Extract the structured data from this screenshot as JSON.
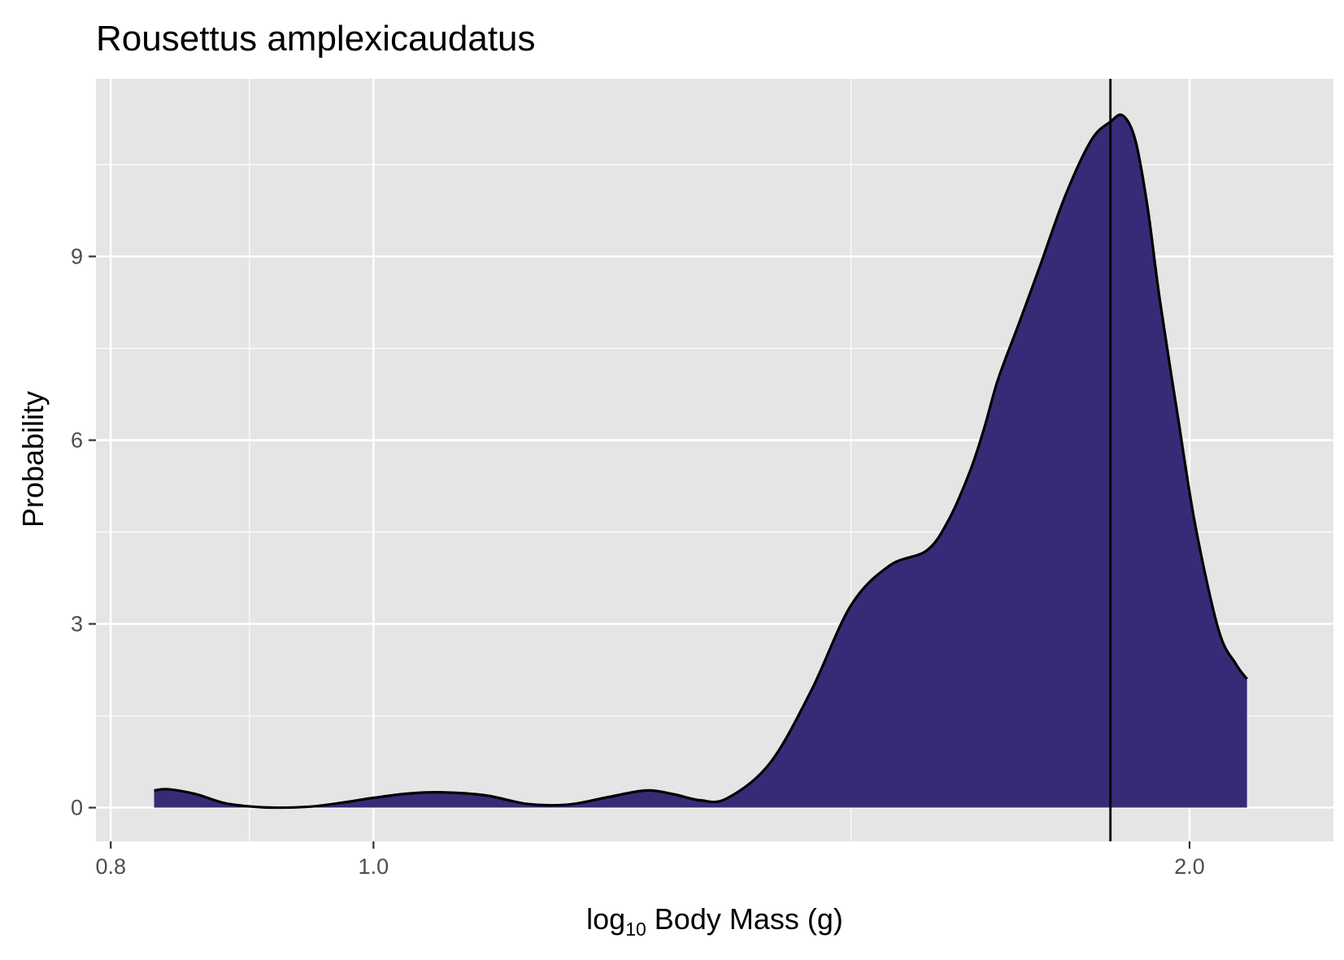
{
  "chart_data": {
    "type": "area",
    "title": "Rousettus amplexicaudatus",
    "xlabel": "log",
    "xlabel_sub": "10",
    "xlabel_rest": " Body Mass (g)",
    "ylabel": "Probability",
    "x_scale": "log10",
    "xlim": [
      0.79,
      2.26
    ],
    "ylim": [
      -0.55,
      11.9
    ],
    "x_ticks": [
      {
        "value": 0.8,
        "label": "0.8"
      },
      {
        "value": 1.0,
        "label": "1.0"
      },
      {
        "value": 2.0,
        "label": "2.0"
      }
    ],
    "x_minor_grid": [
      0.9,
      1.5
    ],
    "y_ticks": [
      {
        "value": 0,
        "label": "0"
      },
      {
        "value": 3,
        "label": "3"
      },
      {
        "value": 6,
        "label": "6"
      },
      {
        "value": 9,
        "label": "9"
      }
    ],
    "y_minor_grid": [
      1.5,
      4.5,
      7.5,
      10.5
    ],
    "reference_line_x": 1.87,
    "grid": true,
    "legend": "none",
    "fill_color": "#372B77",
    "line_color": "#000000",
    "panel_color": "#E5E5E5",
    "grid_color": "#FFFFFF",
    "series": [
      {
        "x": [
          0.83,
          0.84,
          0.86,
          0.88,
          0.9,
          0.92,
          0.95,
          0.98,
          1.0,
          1.03,
          1.06,
          1.1,
          1.14,
          1.18,
          1.22,
          1.26,
          1.29,
          1.32,
          1.35,
          1.4,
          1.45,
          1.5,
          1.55,
          1.6,
          1.63,
          1.66,
          1.68,
          1.7,
          1.73,
          1.76,
          1.8,
          1.84,
          1.87,
          1.89,
          1.91,
          1.93,
          1.95,
          1.98,
          2.01,
          2.05,
          2.08,
          2.1
        ],
        "y": [
          0.28,
          0.3,
          0.22,
          0.08,
          0.02,
          0.0,
          0.02,
          0.1,
          0.16,
          0.23,
          0.25,
          0.2,
          0.06,
          0.05,
          0.17,
          0.28,
          0.22,
          0.12,
          0.15,
          0.72,
          1.9,
          3.3,
          3.95,
          4.2,
          4.7,
          5.5,
          6.2,
          7.0,
          7.9,
          8.8,
          10.0,
          10.9,
          11.2,
          11.3,
          10.9,
          9.8,
          8.3,
          6.4,
          4.6,
          2.9,
          2.35,
          2.1
        ]
      }
    ]
  }
}
